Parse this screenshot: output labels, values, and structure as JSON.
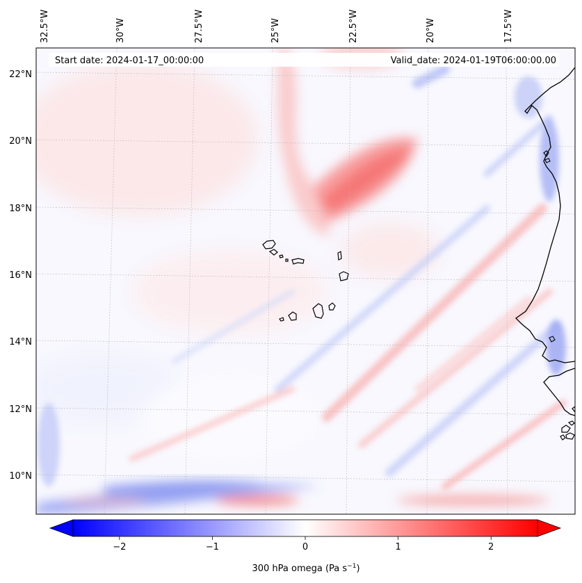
{
  "header": {
    "start_label": "Start date: 2024-01-17_00:00:00",
    "valid_label": "Valid_date: 2024-01-19T06:00:00.00"
  },
  "longitude_labels": [
    "32.5°W",
    "30°W",
    "27.5°W",
    "25°W",
    "22.5°W",
    "20°W",
    "17.5°W"
  ],
  "latitude_labels": [
    "22°N",
    "20°N",
    "18°N",
    "16°N",
    "14°N",
    "12°N",
    "10°N"
  ],
  "colorbar": {
    "ticks": [
      {
        "value": -2,
        "label": "−2"
      },
      {
        "value": -1,
        "label": "−1"
      },
      {
        "value": 0,
        "label": "0"
      },
      {
        "value": 1,
        "label": "1"
      },
      {
        "value": 2,
        "label": "2"
      }
    ],
    "range": [
      -2.5,
      2.5
    ],
    "label_main": "300 hPa omega (Pa s",
    "label_sup": "−1",
    "label_close": ")",
    "colors": {
      "negative": "#0000ff",
      "zero": "#ffffff",
      "positive": "#ff0000"
    }
  },
  "field_features": [
    {
      "kind": "subsidence",
      "description": "Strong positive omega band NNE of Cape Verde",
      "strength": 1.4
    },
    {
      "kind": "ascent",
      "description": "Negative omega streaks along West African coast",
      "strength": -1.2
    },
    {
      "kind": "ascent",
      "description": "Negative omega band near 9.5°N",
      "strength": -1.3
    },
    {
      "kind": "subsidence",
      "description": "Positive omega strip near 9°N",
      "strength": 1.2
    }
  ]
}
